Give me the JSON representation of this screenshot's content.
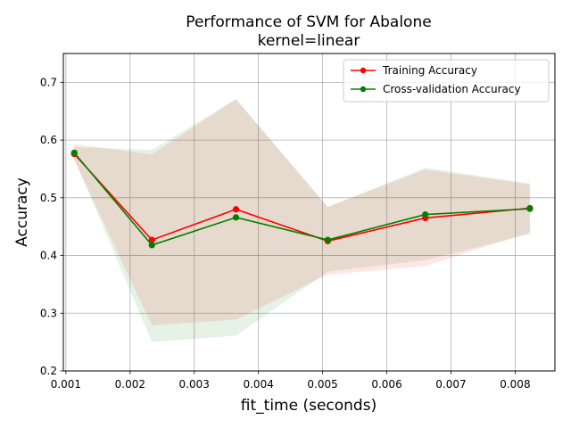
{
  "chart_data": {
    "type": "line",
    "title": "Performance of SVM for Abalone",
    "subtitle": "kernel=linear",
    "xlabel": "fit_time (seconds)",
    "ylabel": "Accuracy",
    "xlim": [
      0.00096,
      0.00862
    ],
    "ylim": [
      0.2,
      0.75
    ],
    "xticks": [
      0.001,
      0.002,
      0.003,
      0.004,
      0.005,
      0.006,
      0.007,
      0.008
    ],
    "xtick_labels": [
      "0.001",
      "0.002",
      "0.003",
      "0.004",
      "0.005",
      "0.006",
      "0.007",
      "0.008"
    ],
    "yticks": [
      0.2,
      0.3,
      0.4,
      0.5,
      0.6,
      0.7
    ],
    "ytick_labels": [
      "0.2",
      "0.3",
      "0.4",
      "0.5",
      "0.6",
      "0.7"
    ],
    "grid": true,
    "legend_position": "top-right",
    "series": [
      {
        "name": "Training Accuracy",
        "color": "#ff0000",
        "x": [
          0.00113,
          0.00234,
          0.00365,
          0.00508,
          0.0066,
          0.00823
        ],
        "y": [
          0.576,
          0.427,
          0.48,
          0.425,
          0.465,
          0.482
        ],
        "band_lower": [
          0.565,
          0.279,
          0.289,
          0.367,
          0.382,
          0.44
        ],
        "band_upper": [
          0.593,
          0.575,
          0.671,
          0.484,
          0.549,
          0.523
        ]
      },
      {
        "name": "Cross-validation Accuracy",
        "color": "#008000",
        "x": [
          0.00113,
          0.00234,
          0.00365,
          0.00508,
          0.0066,
          0.00823
        ],
        "y": [
          0.578,
          0.418,
          0.466,
          0.427,
          0.471,
          0.481
        ],
        "band_lower": [
          0.568,
          0.25,
          0.261,
          0.372,
          0.392,
          0.437
        ],
        "band_upper": [
          0.588,
          0.583,
          0.671,
          0.484,
          0.552,
          0.525
        ]
      }
    ]
  }
}
